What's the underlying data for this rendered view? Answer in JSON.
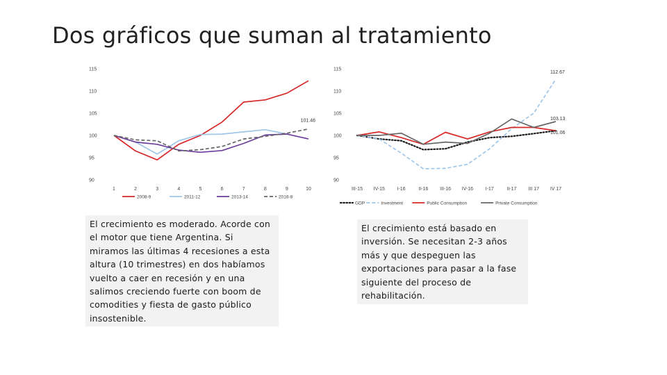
{
  "title": "Dos gráficos que suman al tratamiento",
  "notes": {
    "left": "El crecimiento es moderado. Acorde con el motor que tiene Argentina. Si miramos las últimas 4 recesiones a esta altura (10 trimestres) en dos habíamos vuelto a caer en recesión y en una salimos creciendo fuerte con boom de comodities y fiesta de gasto público insostenible.",
    "right": "El crecimiento está basado en inversión. Se necesitan 2-3 años más y que despeguen las exportaciones para pasar a la fase siguiente del proceso de rehabilitación."
  },
  "chart_data": [
    {
      "type": "line",
      "title": "",
      "xlabel": "",
      "ylabel": "",
      "x": [
        "1",
        "2",
        "3",
        "4",
        "5",
        "6",
        "7",
        "8",
        "9",
        "10"
      ],
      "ylim": [
        90,
        115
      ],
      "yticks": [
        90,
        95,
        100,
        105,
        110,
        115
      ],
      "grid": false,
      "legend_position": "bottom",
      "series": [
        {
          "name": "2008-9",
          "color": "#d62728",
          "dash": "solid",
          "values": [
            100,
            96.5,
            94.5,
            98,
            100,
            103,
            107.5,
            108,
            109.5,
            112.3
          ]
        },
        {
          "name": "2011-12",
          "color": "#9fc5e8",
          "dash": "solid",
          "values": [
            100,
            98.5,
            95.8,
            98.8,
            100.2,
            100.3,
            100.8,
            101.3,
            100.3,
            null
          ]
        },
        {
          "name": "2013-14",
          "color": "#6a3d9a",
          "dash": "solid",
          "values": [
            100,
            98.5,
            98,
            96.7,
            96.2,
            96.6,
            98.2,
            100.1,
            100.3,
            99.2
          ]
        },
        {
          "name": "2016-8",
          "color": "#666666",
          "dash": "dashed",
          "values": [
            100,
            99,
            98.8,
            96.5,
            96.8,
            97.5,
            99.2,
            99.8,
            100.5,
            101.46
          ]
        }
      ],
      "annotations": [
        {
          "text": "101.46",
          "series": "2016-8",
          "index": 9
        }
      ]
    },
    {
      "type": "line",
      "title": "",
      "xlabel": "",
      "ylabel": "",
      "x": [
        "III-15",
        "IV-15",
        "I-16",
        "II-16",
        "III-16",
        "IV-16",
        "I-17",
        "II-17",
        "III 17",
        "IV 17"
      ],
      "ylim": [
        90,
        115
      ],
      "yticks": [
        90,
        95,
        100,
        105,
        110,
        115
      ],
      "grid": false,
      "legend_position": "bottom",
      "series": [
        {
          "name": "GDP",
          "color": "#1b1b1b",
          "dash": "dotted",
          "values": [
            100,
            99.2,
            98.8,
            96.8,
            97,
            98.5,
            99.5,
            99.8,
            100.4,
            101.06
          ]
        },
        {
          "name": "Investment",
          "color": "#9fc5e8",
          "dash": "dashed",
          "values": [
            100,
            99.2,
            96,
            92.5,
            92.6,
            93.5,
            97,
            101.5,
            105,
            112.67
          ]
        },
        {
          "name": "Public Consumption",
          "color": "#d62728",
          "dash": "solid",
          "values": [
            100,
            100.8,
            99.5,
            98,
            100.7,
            99.2,
            100.8,
            101.8,
            101.8,
            101.06
          ]
        },
        {
          "name": "Private Consumption",
          "color": "#666666",
          "dash": "solid",
          "values": [
            100,
            100,
            100.5,
            98,
            98.5,
            98.2,
            100.5,
            103.7,
            101.8,
            103.13
          ]
        }
      ],
      "annotations": [
        {
          "text": "112.67",
          "series": "Investment",
          "index": 9
        },
        {
          "text": "103.13",
          "series": "Private Consumption",
          "index": 9
        },
        {
          "text": "101.06",
          "series": "GDP",
          "index": 9
        }
      ]
    }
  ]
}
